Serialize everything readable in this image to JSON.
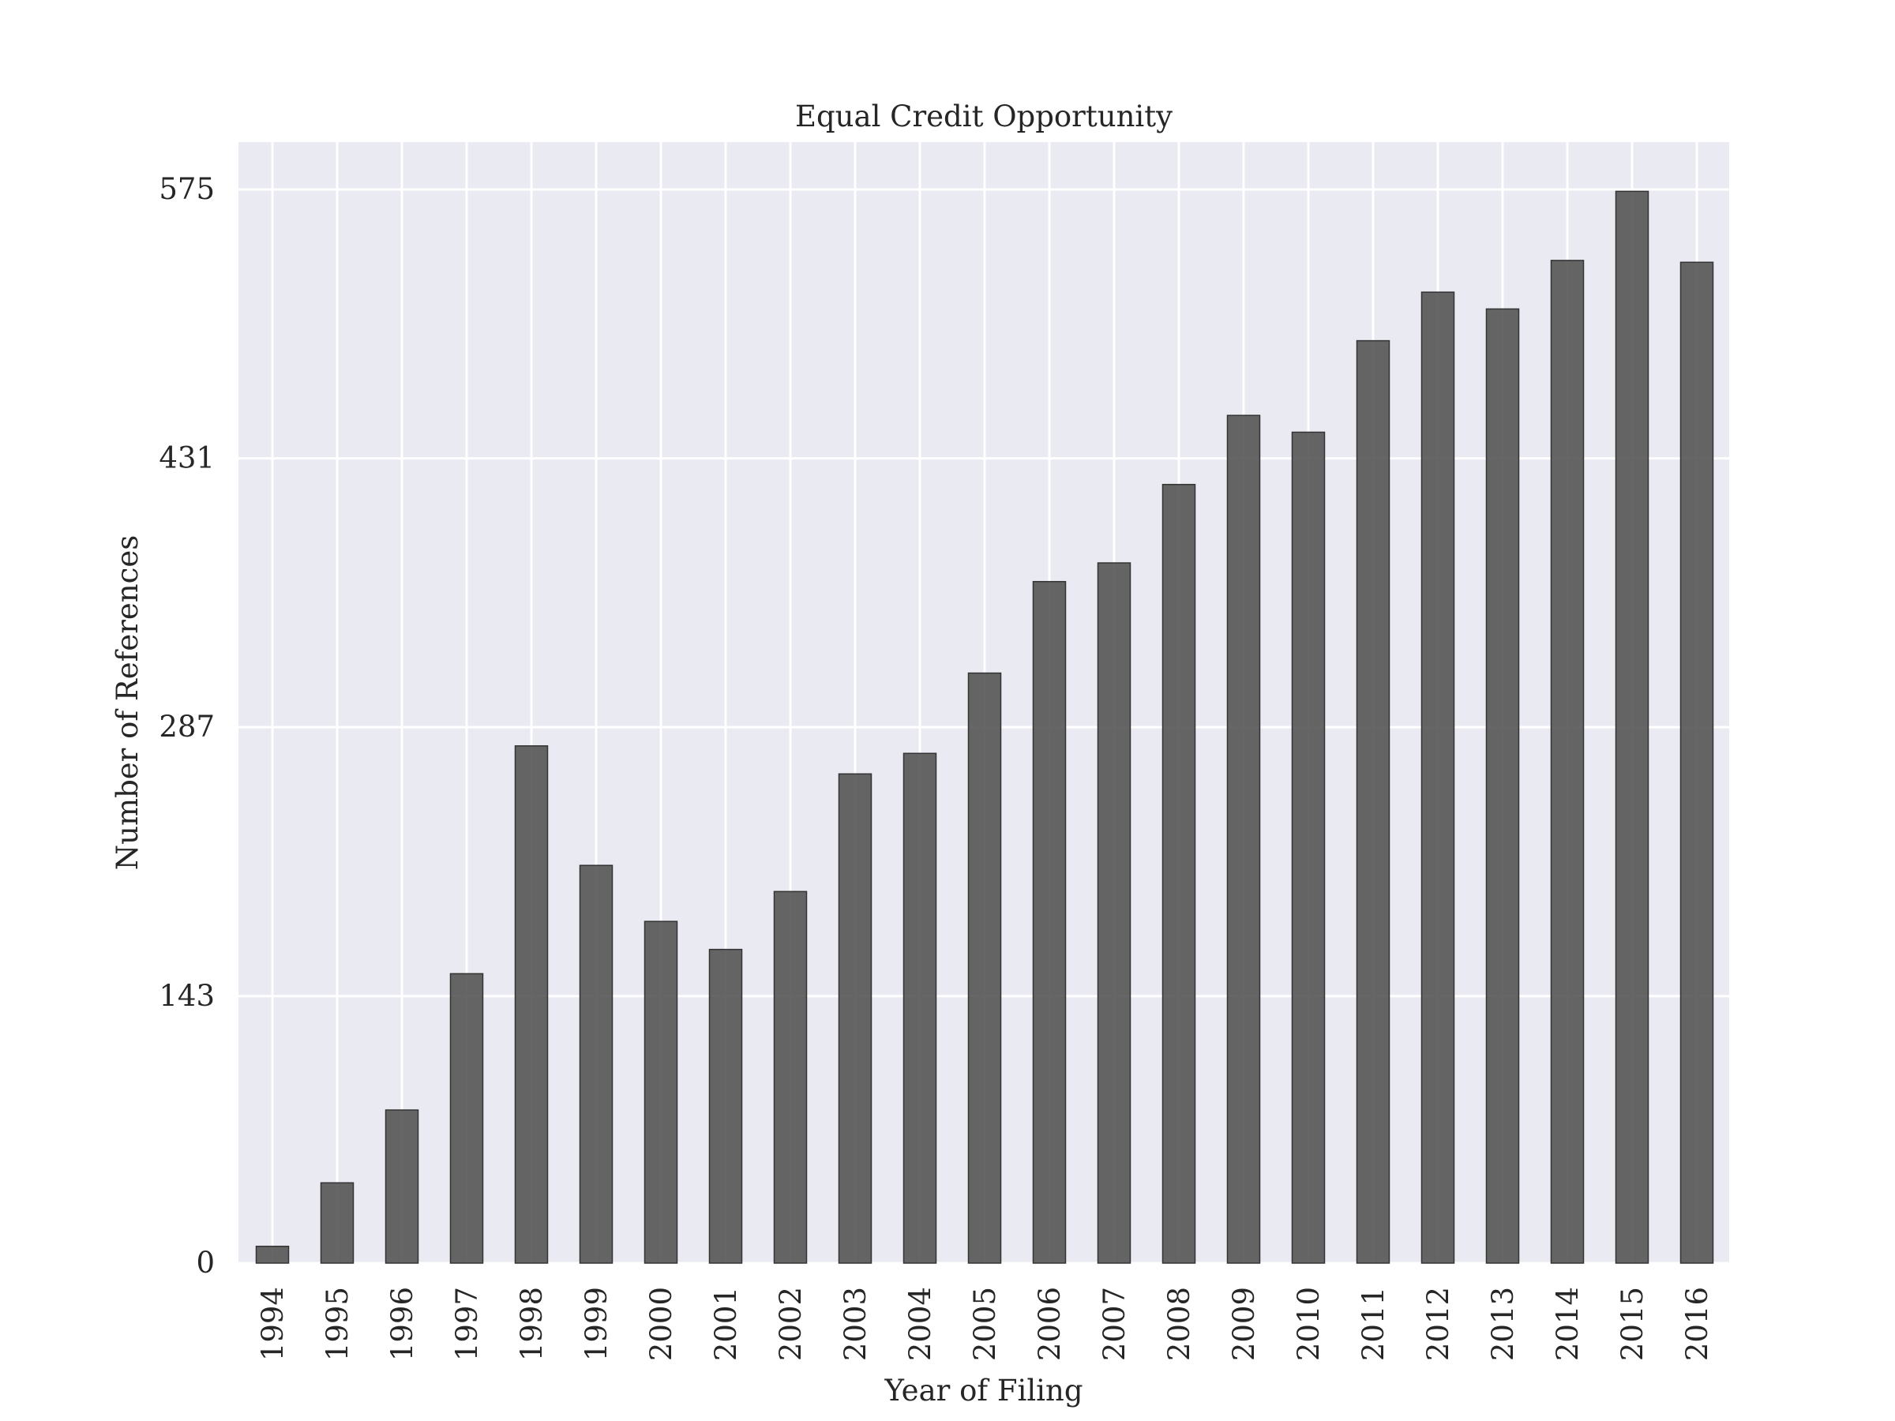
{
  "chart_data": {
    "type": "bar",
    "title": "Equal Credit Opportunity",
    "xlabel": "Year of Filing",
    "ylabel": "Number of References",
    "categories": [
      "1994",
      "1995",
      "1996",
      "1997",
      "1998",
      "1999",
      "2000",
      "2001",
      "2002",
      "2003",
      "2004",
      "2005",
      "2006",
      "2007",
      "2008",
      "2009",
      "2010",
      "2011",
      "2012",
      "2013",
      "2014",
      "2015",
      "2016"
    ],
    "values": [
      9,
      43,
      82,
      155,
      277,
      213,
      183,
      168,
      199,
      262,
      273,
      316,
      365,
      375,
      417,
      454,
      445,
      494,
      520,
      511,
      537,
      574,
      536
    ],
    "yticks": [
      0,
      143,
      287,
      431,
      575
    ],
    "ytick_labels": [
      "0",
      "143",
      "287",
      "431",
      "575"
    ],
    "ylim": [
      0,
      600
    ],
    "grid": true,
    "colors": {
      "plot_background": "#eaeaf2",
      "grid": "#ffffff",
      "bar_fill": "#555555",
      "bar_stroke": "#333333",
      "text": "#262626"
    }
  }
}
